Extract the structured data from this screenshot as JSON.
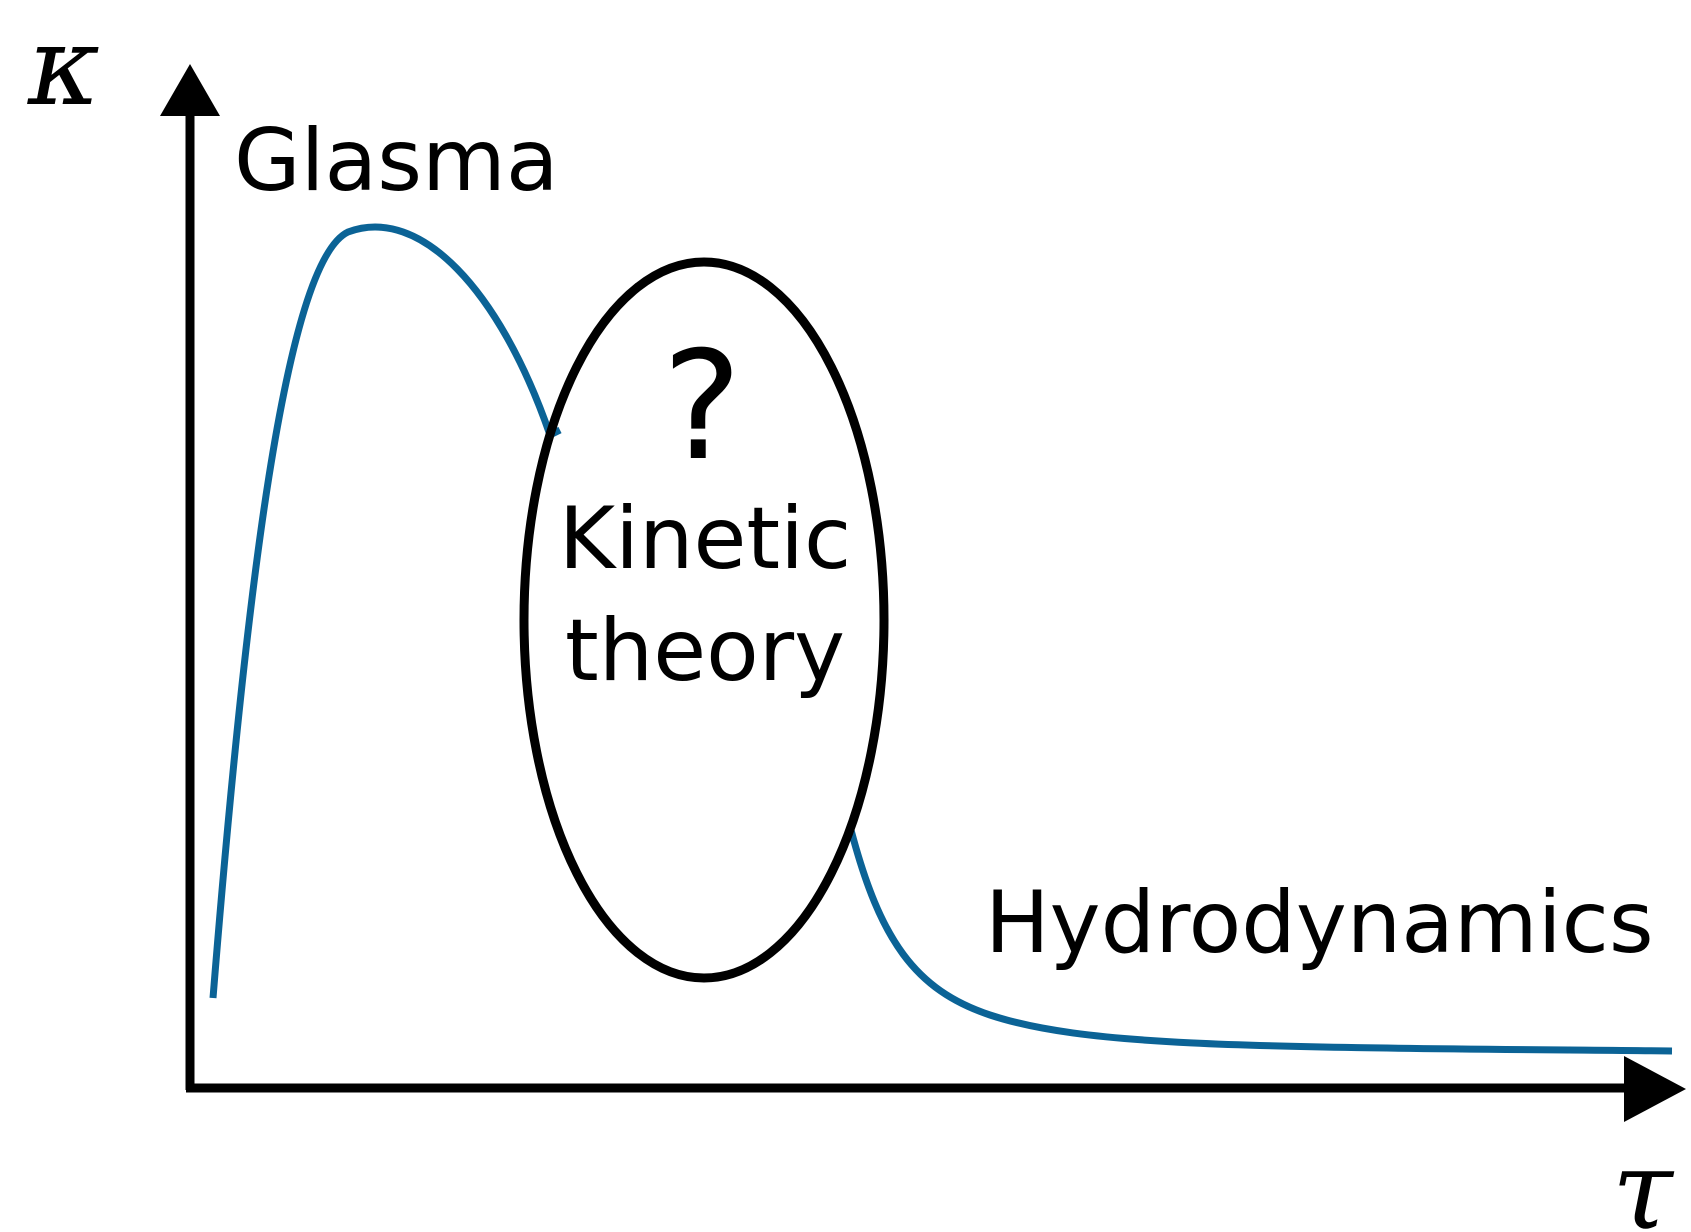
{
  "axes": {
    "y_symbol": "κ",
    "x_symbol": "τ"
  },
  "regions": {
    "glasma": "Glasma",
    "kinetic_question": "?",
    "kinetic_line1": "Kinetic",
    "kinetic_line2": "theory",
    "hydro": "Hydrodynamics"
  },
  "colors": {
    "curve": "#0b6396",
    "axes": "#000000",
    "ellipse": "#000000"
  }
}
